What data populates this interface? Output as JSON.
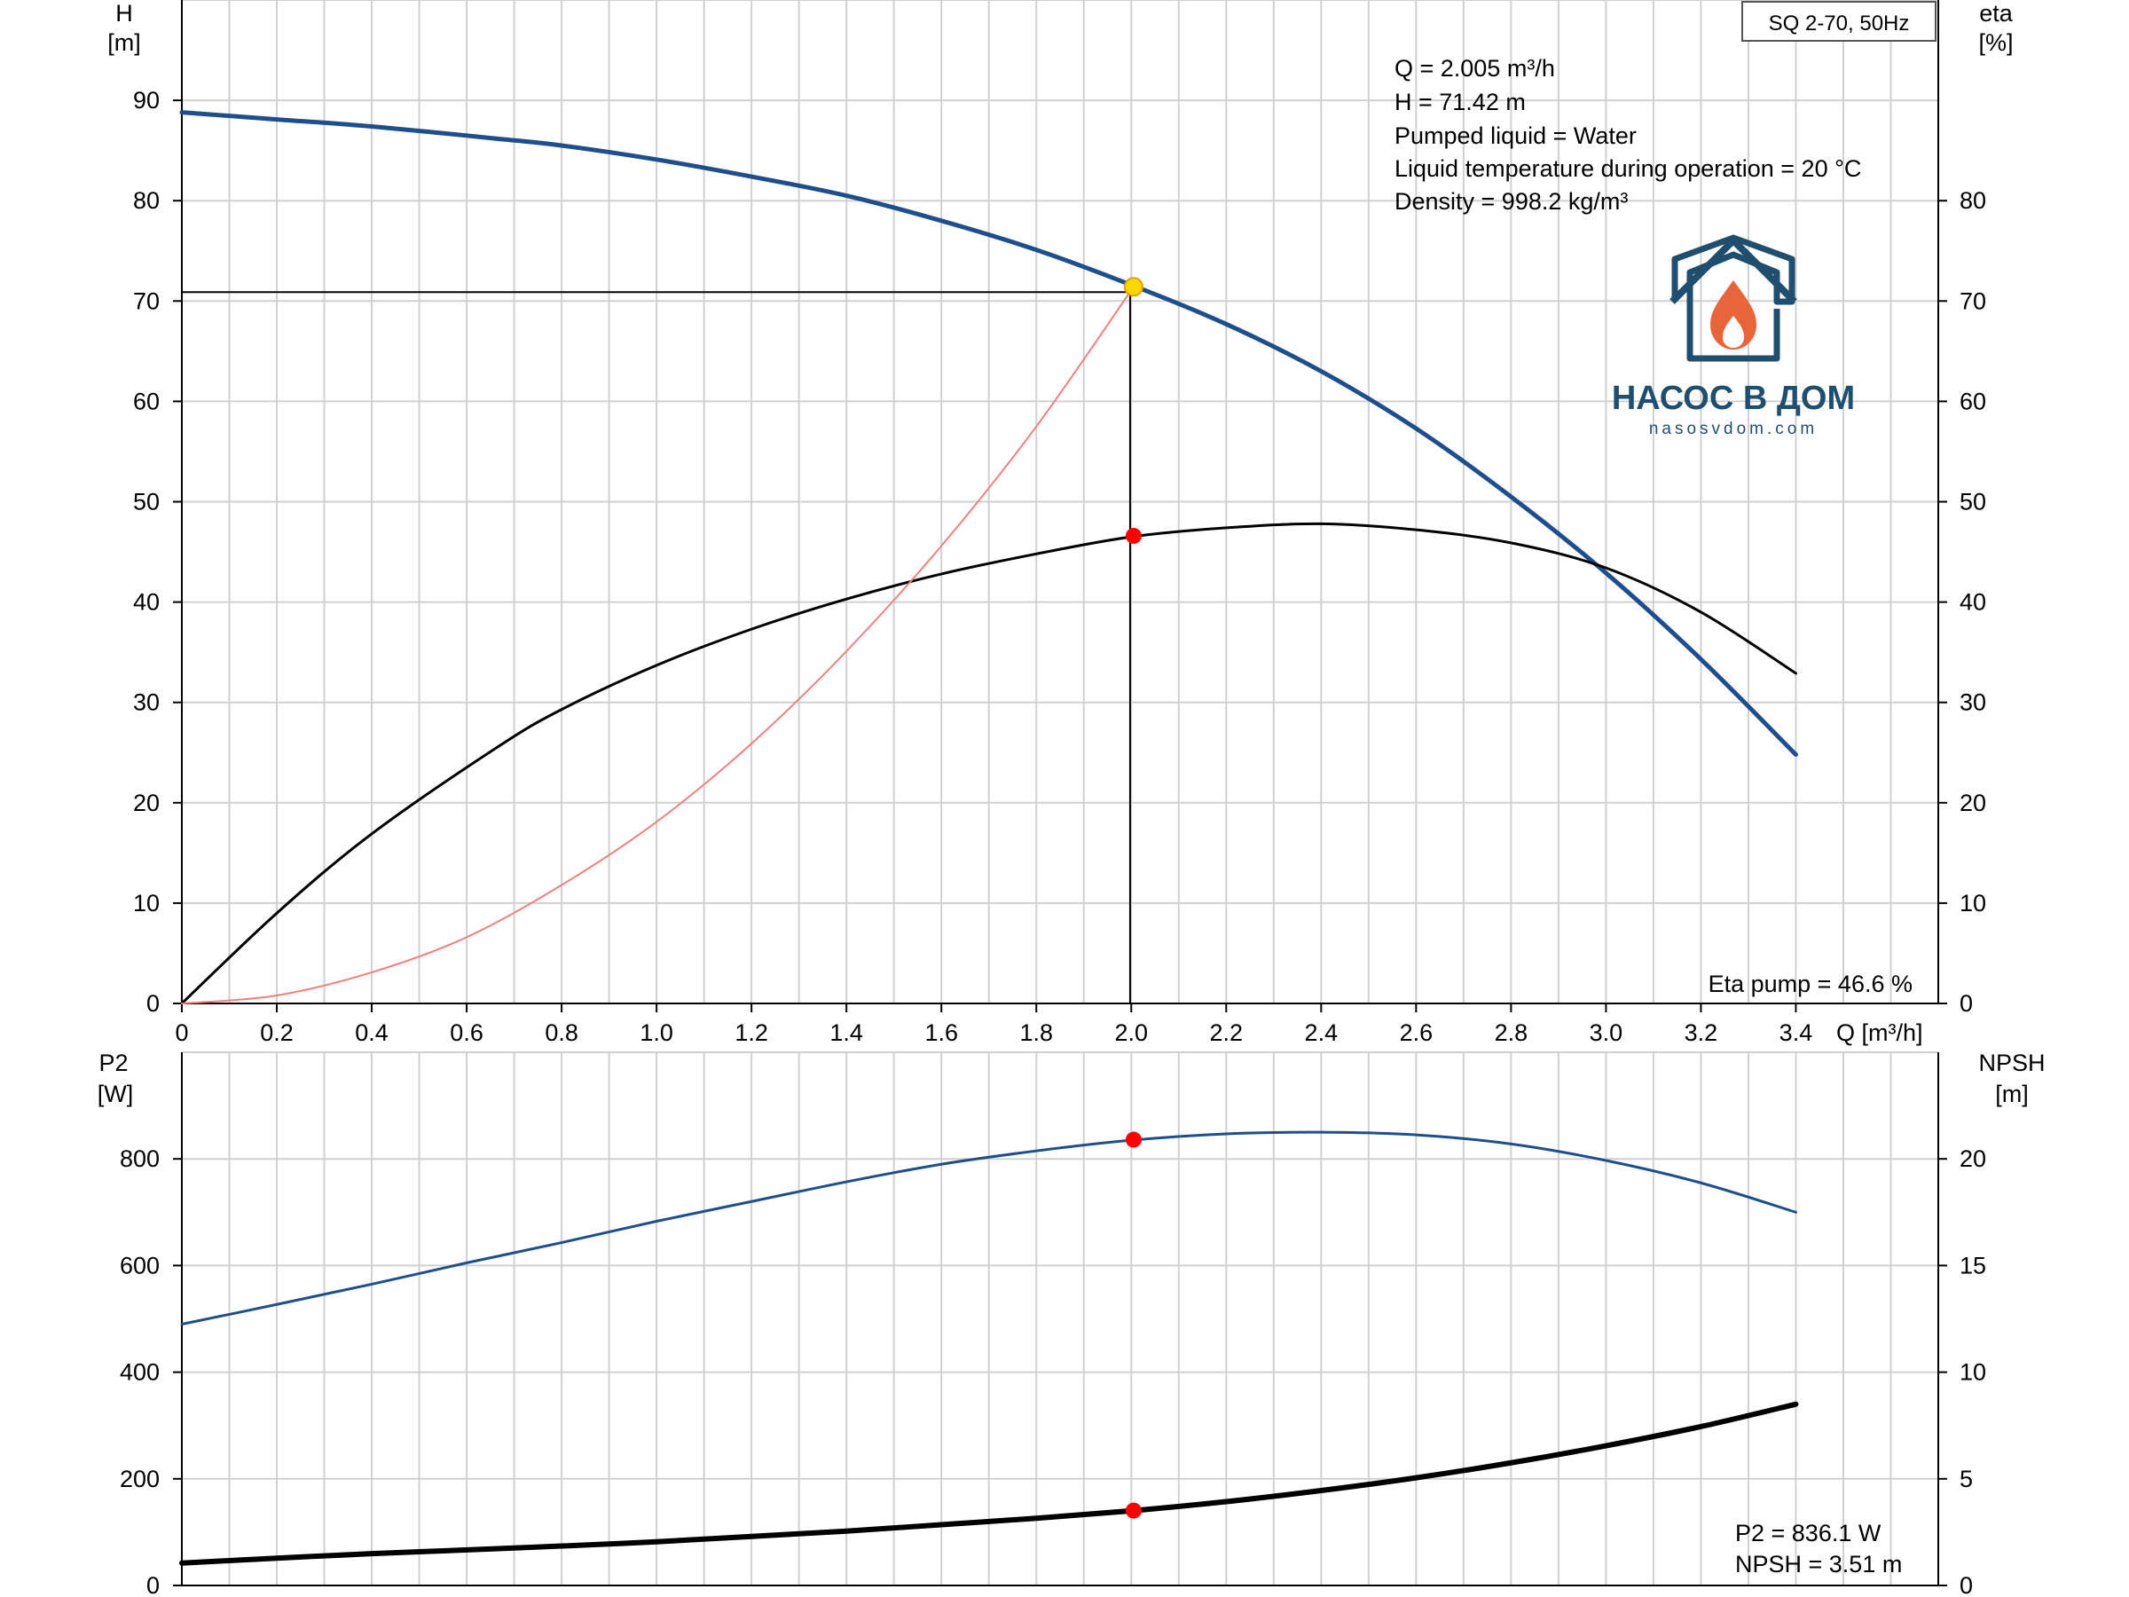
{
  "chart_data": [
    {
      "type": "line",
      "name": "head-efficiency-chart",
      "model_label": "SQ 2-70, 50Hz",
      "left_axis": {
        "label": "H",
        "unit": "[m]",
        "range": [
          0,
          100
        ],
        "ticks": [
          0,
          10,
          20,
          30,
          40,
          50,
          60,
          70,
          80,
          90
        ]
      },
      "right_axis": {
        "label": "eta",
        "unit": "[%]",
        "range": [
          0,
          100
        ],
        "ticks": [
          0,
          10,
          20,
          30,
          40,
          50,
          60,
          70,
          80
        ]
      },
      "x_axis": {
        "label": "Q [m³/h]",
        "range": [
          0,
          3.7
        ],
        "ticks": [
          "0",
          "0.2",
          "0.4",
          "0.6",
          "0.8",
          "1.0",
          "1.2",
          "1.4",
          "1.6",
          "1.8",
          "2.0",
          "2.2",
          "2.4",
          "2.6",
          "2.8",
          "3.0",
          "3.2",
          "3.4"
        ]
      },
      "grid": true,
      "info_lines": [
        "Q = 2.005 m³/h",
        "H = 71.42 m",
        "Pumped liquid = Water",
        "Liquid temperature during operation = 20 °C",
        "Density = 998.2 kg/m³"
      ],
      "footer_note": "Eta pump = 46.6 %",
      "duty_point": {
        "q": 2.005,
        "h": 71.42,
        "eta": 46.6
      },
      "series": [
        {
          "key": "H",
          "axis": "left",
          "color": "#1f4e8c",
          "x": [
            0,
            0.2,
            0.4,
            0.66,
            0.8,
            1.0,
            1.2,
            1.4,
            1.6,
            1.8,
            2.0,
            2.2,
            2.4,
            2.6,
            2.8,
            3.0,
            3.2,
            3.4
          ],
          "values": [
            88.8,
            88.1,
            87.4,
            86.2,
            85.5,
            84.1,
            82.4,
            80.5,
            78.0,
            75.1,
            71.6,
            67.7,
            63.0,
            57.3,
            50.5,
            42.9,
            34.3,
            24.8
          ]
        },
        {
          "key": "eta",
          "axis": "right",
          "color": "#000000",
          "x": [
            0,
            0.2,
            0.4,
            0.66,
            0.8,
            1.0,
            1.2,
            1.4,
            1.6,
            1.8,
            2.0,
            2.2,
            2.4,
            2.6,
            2.8,
            3.0,
            3.2,
            3.4
          ],
          "values": [
            0,
            9.0,
            16.9,
            25.4,
            29.3,
            33.7,
            37.3,
            40.3,
            42.8,
            44.8,
            46.5,
            47.4,
            47.8,
            47.2,
            45.9,
            43.4,
            39.0,
            32.9
          ]
        },
        {
          "key": "system",
          "axis": "left",
          "color": "#f08080",
          "x": [
            0,
            0.2,
            0.4,
            0.6,
            0.8,
            1.0,
            1.2,
            1.4,
            1.6,
            1.8,
            2.005
          ],
          "values": [
            0,
            0.8,
            3.1,
            6.6,
            11.8,
            18.1,
            25.9,
            35.1,
            45.6,
            57.5,
            71.42
          ]
        }
      ]
    },
    {
      "type": "line",
      "name": "power-npsh-chart",
      "left_axis": {
        "label": "P2",
        "unit": "[W]",
        "range": [
          0,
          1000
        ],
        "ticks": [
          0,
          200,
          400,
          600,
          800
        ]
      },
      "right_axis": {
        "label": "NPSH",
        "unit": "[m]",
        "range": [
          0,
          25
        ],
        "ticks": [
          0,
          5,
          10,
          15,
          20
        ]
      },
      "x_axis": {
        "range": [
          0,
          3.7
        ]
      },
      "grid": true,
      "footer_lines": [
        "P2 = 836.1 W",
        "NPSH = 3.51 m"
      ],
      "duty_point": {
        "q": 2.005,
        "p2": 836.1,
        "npsh": 3.51
      },
      "series": [
        {
          "key": "P2",
          "axis": "left",
          "color": "#1f4e8c",
          "x": [
            0,
            0.2,
            0.4,
            0.6,
            0.8,
            1.0,
            1.2,
            1.4,
            1.6,
            1.8,
            2.0,
            2.2,
            2.4,
            2.6,
            2.8,
            3.0,
            3.2,
            3.4
          ],
          "values": [
            490,
            527,
            565,
            605,
            643,
            683,
            720,
            757,
            790,
            815,
            835,
            847,
            850,
            845,
            828,
            797,
            755,
            700
          ]
        },
        {
          "key": "NPSH",
          "axis": "right",
          "color": "#000000",
          "x": [
            0,
            0.2,
            0.4,
            0.66,
            0.8,
            1.0,
            1.2,
            1.4,
            1.6,
            1.8,
            2.0,
            2.2,
            2.4,
            2.6,
            2.8,
            3.0,
            3.2,
            3.4
          ],
          "values": [
            1.05,
            1.28,
            1.49,
            1.72,
            1.85,
            2.05,
            2.3,
            2.55,
            2.85,
            3.15,
            3.5,
            3.93,
            4.45,
            5.05,
            5.75,
            6.55,
            7.45,
            8.5
          ]
        }
      ]
    }
  ],
  "logo": {
    "name": "НАСОС В ДОМ",
    "url": "nasosvdom.com",
    "color_primary": "#1f4e6e",
    "color_flame": "#e8643a"
  },
  "colors": {
    "grid": "#d0d0d0",
    "axis": "#000000",
    "pump_curve": "#1f4e8c",
    "eta_curve": "#000000",
    "system_curve": "#f08080",
    "duty_point": "#ff0000",
    "duty_point_top": "#ffd700"
  }
}
